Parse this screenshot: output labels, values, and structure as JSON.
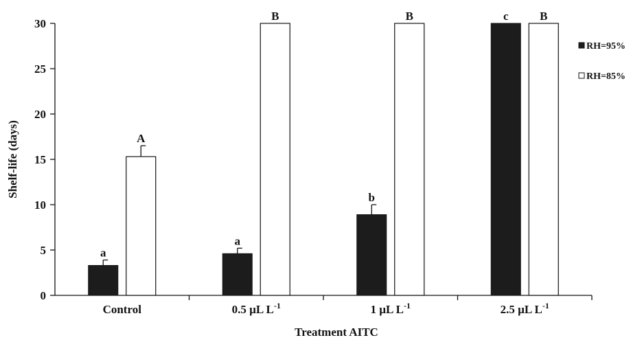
{
  "chart_data": {
    "type": "bar",
    "title": "",
    "xlabel": "Treatment AITC",
    "ylabel": "Shelf-life (days)",
    "ylim": [
      0,
      30
    ],
    "yticks": [
      0,
      5,
      10,
      15,
      20,
      25,
      30
    ],
    "categories": [
      {
        "main": "Control",
        "sup": ""
      },
      {
        "main": "0.5 µL L",
        "sup": "-1"
      },
      {
        "main": "1 µL L",
        "sup": "-1"
      },
      {
        "main": "2.5 µL L",
        "sup": "-1"
      }
    ],
    "series": [
      {
        "name": "RH=95%",
        "color": "#1c1c1c",
        "values": [
          3.3,
          4.6,
          8.9,
          30
        ],
        "errors": [
          0.6,
          0.6,
          1.1,
          0
        ],
        "labels": [
          "a",
          "a",
          "b",
          "c"
        ]
      },
      {
        "name": "RH=85%",
        "color": "#ffffff",
        "values": [
          15.3,
          30,
          30,
          30
        ],
        "errors": [
          1.2,
          0,
          0,
          0
        ],
        "labels": [
          "A",
          "B",
          "B",
          "B"
        ]
      }
    ],
    "legend": {
      "position": "right"
    },
    "grid": false
  }
}
